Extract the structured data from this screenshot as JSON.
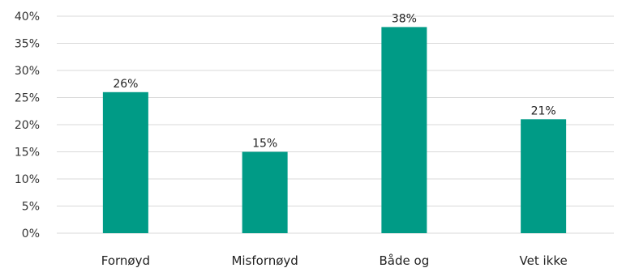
{
  "chart_data": {
    "type": "bar",
    "title": "",
    "xlabel": "",
    "ylabel": "",
    "categories": [
      "Fornøyd",
      "Misfornøyd",
      "Både og",
      "Vet ikke"
    ],
    "values": [
      26,
      15,
      38,
      21
    ],
    "data_labels": [
      "26%",
      "15%",
      "38%",
      "21%"
    ],
    "ylim": [
      0,
      40
    ],
    "yticks": [
      0,
      5,
      10,
      15,
      20,
      25,
      30,
      35,
      40
    ],
    "ytick_labels": [
      "0%",
      "5%",
      "10%",
      "15%",
      "20%",
      "25%",
      "30%",
      "35%",
      "40%"
    ],
    "grid": true,
    "legend": "none",
    "bar_color": "#009b86"
  }
}
